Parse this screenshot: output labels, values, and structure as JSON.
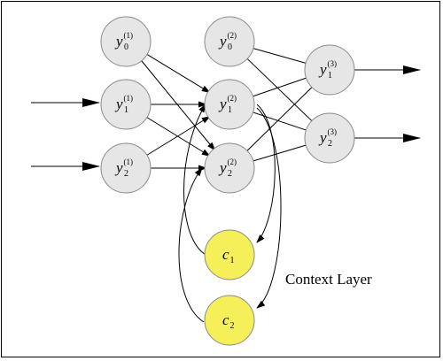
{
  "colors": {
    "node_fill": "#e6e6e6",
    "context_fill": "#f5f05a",
    "node_stroke": "#8a8a8a",
    "edge": "#000000"
  },
  "context_layer_label": "Context Layer",
  "nodes": [
    {
      "id": "y0_1",
      "name": "y",
      "sub": "0",
      "sup": "(1)",
      "kind": "neuron"
    },
    {
      "id": "y1_1",
      "name": "y",
      "sub": "1",
      "sup": "(1)",
      "kind": "neuron"
    },
    {
      "id": "y2_1",
      "name": "y",
      "sub": "2",
      "sup": "(1)",
      "kind": "neuron"
    },
    {
      "id": "y0_2",
      "name": "y",
      "sub": "0",
      "sup": "(2)",
      "kind": "neuron"
    },
    {
      "id": "y1_2",
      "name": "y",
      "sub": "1",
      "sup": "(2)",
      "kind": "neuron"
    },
    {
      "id": "y2_2",
      "name": "y",
      "sub": "2",
      "sup": "(2)",
      "kind": "neuron"
    },
    {
      "id": "y1_3",
      "name": "y",
      "sub": "1",
      "sup": "(3)",
      "kind": "neuron"
    },
    {
      "id": "y2_3",
      "name": "y",
      "sub": "2",
      "sup": "(3)",
      "kind": "neuron"
    },
    {
      "id": "c1",
      "name": "c",
      "sub": "1",
      "sup": "",
      "kind": "context"
    },
    {
      "id": "c2",
      "name": "c",
      "sub": "2",
      "sup": "",
      "kind": "context"
    }
  ],
  "edges": [
    [
      "y0_1",
      "y1_2"
    ],
    [
      "y0_1",
      "y2_2"
    ],
    [
      "y1_1",
      "y1_2"
    ],
    [
      "y1_1",
      "y2_2"
    ],
    [
      "y2_1",
      "y1_2"
    ],
    [
      "y2_1",
      "y2_2"
    ],
    [
      "y0_2",
      "y1_3"
    ],
    [
      "y0_2",
      "y2_3"
    ],
    [
      "y1_2",
      "y1_3"
    ],
    [
      "y1_2",
      "y2_3"
    ],
    [
      "y2_2",
      "y1_3"
    ],
    [
      "y2_2",
      "y2_3"
    ]
  ]
}
